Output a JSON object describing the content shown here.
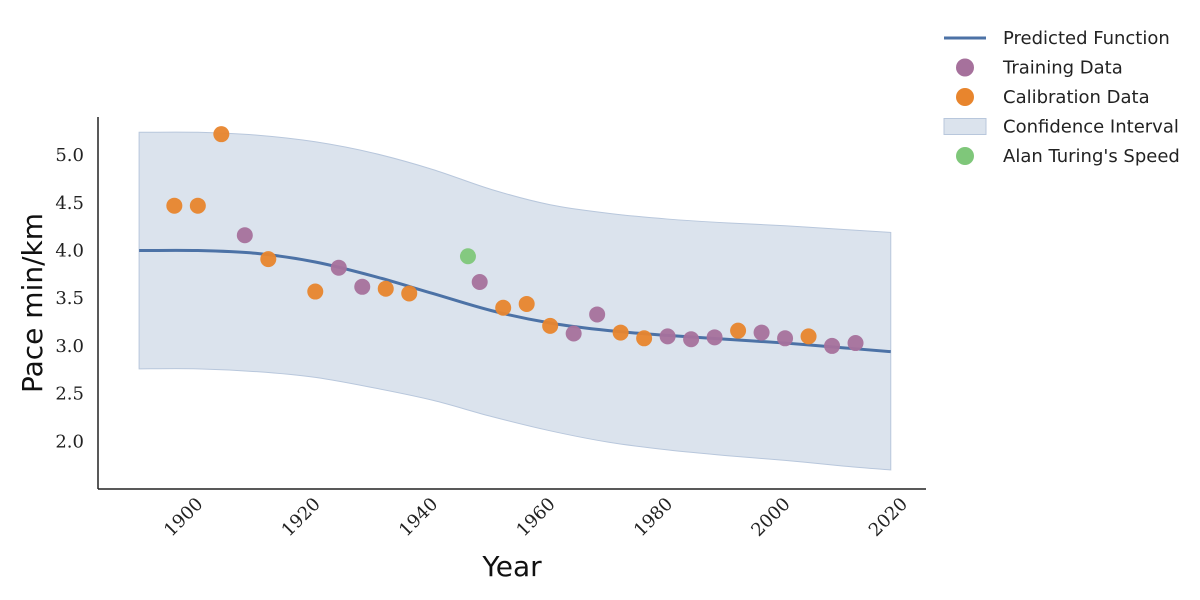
{
  "chart_data": {
    "type": "scatter",
    "xlabel": "Year",
    "ylabel": "Pace min/km",
    "xlim": [
      1883,
      2024
    ],
    "ylim": [
      1.5,
      5.4
    ],
    "xticks": [
      1900,
      1920,
      1940,
      1960,
      1980,
      2000,
      2020
    ],
    "yticks": [
      2.0,
      2.5,
      3.0,
      3.5,
      4.0,
      4.5,
      5.0
    ],
    "yticks_text": [
      "2.0",
      "2.5",
      "3.0",
      "3.5",
      "4.0",
      "4.5",
      "5.0"
    ],
    "grid": false,
    "legend_position": "top-right, outside plot",
    "series": [
      {
        "name": "Predicted Function",
        "kind": "line",
        "color": "#4c72a6",
        "x": [
          1890,
          1900,
          1910,
          1920,
          1930,
          1940,
          1950,
          1960,
          1970,
          1980,
          1990,
          2000,
          2010,
          2018
        ],
        "y": [
          4.0,
          4.0,
          3.97,
          3.88,
          3.73,
          3.55,
          3.37,
          3.24,
          3.16,
          3.11,
          3.07,
          3.03,
          2.98,
          2.94
        ]
      },
      {
        "name": "Training Data",
        "kind": "scatter",
        "color": "#a6719c",
        "x": [
          1908,
          1924,
          1928,
          1948,
          1964,
          1968,
          1980,
          1984,
          1988,
          1996,
          2000,
          2008,
          2012
        ],
        "y": [
          4.16,
          3.82,
          3.62,
          3.67,
          3.13,
          3.33,
          3.1,
          3.07,
          3.09,
          3.14,
          3.08,
          3.0,
          3.03
        ]
      },
      {
        "name": "Calibration Data",
        "kind": "scatter",
        "color": "#e8852d",
        "x": [
          1896,
          1900,
          1904,
          1912,
          1920,
          1932,
          1936,
          1952,
          1956,
          1960,
          1972,
          1976,
          1992,
          2004
        ],
        "y": [
          4.47,
          4.47,
          5.22,
          3.91,
          3.57,
          3.6,
          3.55,
          3.4,
          3.44,
          3.21,
          3.14,
          3.08,
          3.16,
          3.1
        ]
      },
      {
        "name": "Confidence Interval",
        "kind": "band",
        "color": "#b8c7dc",
        "x": [
          1890,
          1900,
          1910,
          1920,
          1930,
          1940,
          1950,
          1960,
          1970,
          1980,
          1990,
          2000,
          2010,
          2018
        ],
        "upper": [
          5.24,
          5.24,
          5.21,
          5.14,
          5.02,
          4.85,
          4.64,
          4.48,
          4.39,
          4.33,
          4.29,
          4.26,
          4.22,
          4.19
        ],
        "lower": [
          2.76,
          2.76,
          2.73,
          2.67,
          2.56,
          2.43,
          2.26,
          2.11,
          1.99,
          1.91,
          1.85,
          1.8,
          1.74,
          1.7
        ]
      },
      {
        "name": "Alan Turing's Speed",
        "kind": "scatter",
        "color": "#7fc77a",
        "x": [
          1946
        ],
        "y": [
          3.94
        ]
      }
    ],
    "legend_order": [
      "Predicted Function",
      "Training Data",
      "Calibration Data",
      "Confidence Interval",
      "Alan Turing's Speed"
    ]
  }
}
